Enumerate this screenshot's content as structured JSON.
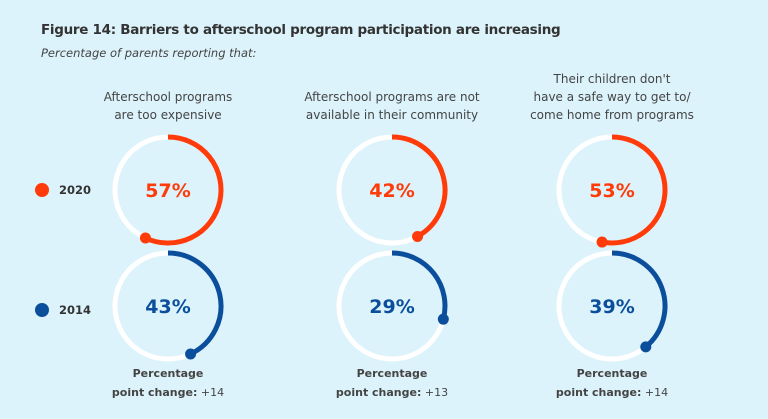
{
  "chart_data": {
    "type": "donut",
    "title": "Figure 14:  Barriers to afterschool program participation are increasing",
    "subtitle": "Percentage of parents reporting that:",
    "categories": [
      "Afterschool programs are too expensive",
      "Afterschool programs are not available in their community",
      "Their children don't have a safe way to get to/ come home from programs"
    ],
    "category_lines": [
      [
        "Afterschool programs",
        "are too expensive"
      ],
      [
        "Afterschool programs are not",
        "available in their community"
      ],
      [
        "Their children don't",
        "have a safe way to get to/",
        "come home from programs"
      ]
    ],
    "series": [
      {
        "name": "2020",
        "color": "#ff3b0a",
        "values": [
          57,
          42,
          53
        ],
        "labels": [
          "57%",
          "42%",
          "53%"
        ]
      },
      {
        "name": "2014",
        "color": "#0b4f9c",
        "values": [
          43,
          29,
          39
        ],
        "labels": [
          "43%",
          "29%",
          "39%"
        ]
      }
    ],
    "change_label_line1": "Percentage",
    "change_label_line2": "point change:",
    "changes": [
      "+14",
      "+13",
      "+14"
    ],
    "track_color": "#ffffff",
    "background": "#dcf3fb"
  }
}
